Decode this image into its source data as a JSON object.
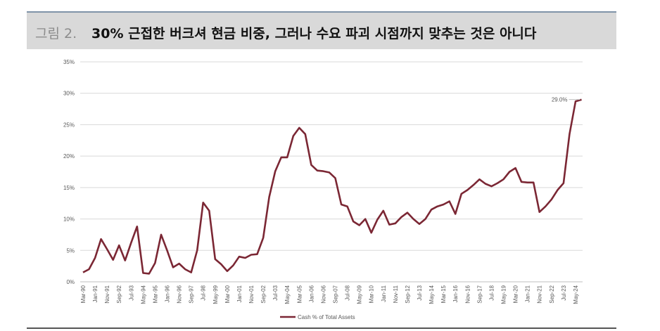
{
  "chart_data": {
    "type": "line",
    "figure_label": "그림 2.",
    "title": "30% 근접한 버크셔 현금 비중, 그러나 수요 파괴 시점까지 맞추는 것은 아니다",
    "categories": [
      "Mar-90",
      null,
      "Jan-91",
      null,
      "Nov-91",
      null,
      "Sep-92",
      null,
      "Jul-93",
      null,
      "May-94",
      null,
      "Mar-95",
      null,
      "Jan-96",
      null,
      "Nov-96",
      null,
      "Sep-97",
      null,
      "Jul-98",
      null,
      "May-99",
      null,
      "Mar-00",
      null,
      "Jan-01",
      null,
      "Nov-01",
      null,
      "Sep-02",
      null,
      "Jul-03",
      null,
      "May-04",
      null,
      "Mar-05",
      null,
      "Jan-06",
      null,
      "Nov-06",
      null,
      "Sep-07",
      null,
      "Jul-08",
      null,
      "May-09",
      null,
      "Mar-10",
      null,
      "Jan-11",
      null,
      "Nov-11",
      null,
      "Sep-12",
      null,
      "Jul-13",
      null,
      "May-14",
      null,
      "Mar-15",
      null,
      "Jan-16",
      null,
      "Nov-16",
      null,
      "Sep-17",
      null,
      "Jul-18",
      null,
      "May-19",
      null,
      "Mar-20",
      null,
      "Jan-21",
      null,
      "Nov-21",
      null,
      "Sep-22",
      null,
      "Jul-23",
      null,
      "May-24",
      null
    ],
    "series": [
      {
        "name": "Cash % of Total Assets",
        "color": "#7b2734",
        "values": [
          1.5,
          2.0,
          3.8,
          6.8,
          5.2,
          3.5,
          5.8,
          3.4,
          6.2,
          8.8,
          1.4,
          1.3,
          3.0,
          7.5,
          5.0,
          2.3,
          2.9,
          2.0,
          1.5,
          5.0,
          12.6,
          11.3,
          3.6,
          2.8,
          1.7,
          2.6,
          4.0,
          3.8,
          4.3,
          4.4,
          7.0,
          13.5,
          17.6,
          19.8,
          19.8,
          23.2,
          24.5,
          23.5,
          18.6,
          17.7,
          17.6,
          17.4,
          16.5,
          12.3,
          12.0,
          9.6,
          9.0,
          10.0,
          7.8,
          9.9,
          11.3,
          9.1,
          9.3,
          10.3,
          11.0,
          10.0,
          9.2,
          10.0,
          11.5,
          12.0,
          12.3,
          12.8,
          10.8,
          14.0,
          14.6,
          15.4,
          16.3,
          15.6,
          15.2,
          15.7,
          16.3,
          17.5,
          18.1,
          15.9,
          15.8,
          15.8,
          11.1,
          12.0,
          13.1,
          14.6,
          15.7,
          23.5,
          28.7,
          29.0
        ],
        "value_labels": [
          null,
          null,
          null,
          null,
          null,
          null,
          null,
          null,
          null,
          null,
          null,
          null,
          null,
          null,
          null,
          null,
          null,
          null,
          null,
          null,
          null,
          null,
          null,
          null,
          null,
          null,
          null,
          null,
          null,
          null,
          null,
          null,
          null,
          null,
          null,
          null,
          null,
          null,
          null,
          null,
          null,
          null,
          null,
          null,
          null,
          null,
          null,
          null,
          null,
          null,
          null,
          null,
          null,
          null,
          null,
          null,
          null,
          null,
          null,
          null,
          null,
          null,
          null,
          null,
          null,
          null,
          null,
          null,
          null,
          null,
          null,
          null,
          null,
          null,
          null,
          null,
          null,
          null,
          null,
          null,
          null,
          null,
          null,
          "29.0%"
        ]
      }
    ],
    "ylim": [
      0,
      35
    ],
    "yticks": [
      {
        "value": 0,
        "label": "0%"
      },
      {
        "value": 5,
        "label": "5%"
      },
      {
        "value": 10,
        "label": "10%"
      },
      {
        "value": 15,
        "label": "15%"
      },
      {
        "value": 20,
        "label": "20%"
      },
      {
        "value": 25,
        "label": "25%"
      },
      {
        "value": 30,
        "label": "30%"
      },
      {
        "value": 35,
        "label": "35%"
      }
    ],
    "grid": true,
    "legend": "bottom"
  }
}
